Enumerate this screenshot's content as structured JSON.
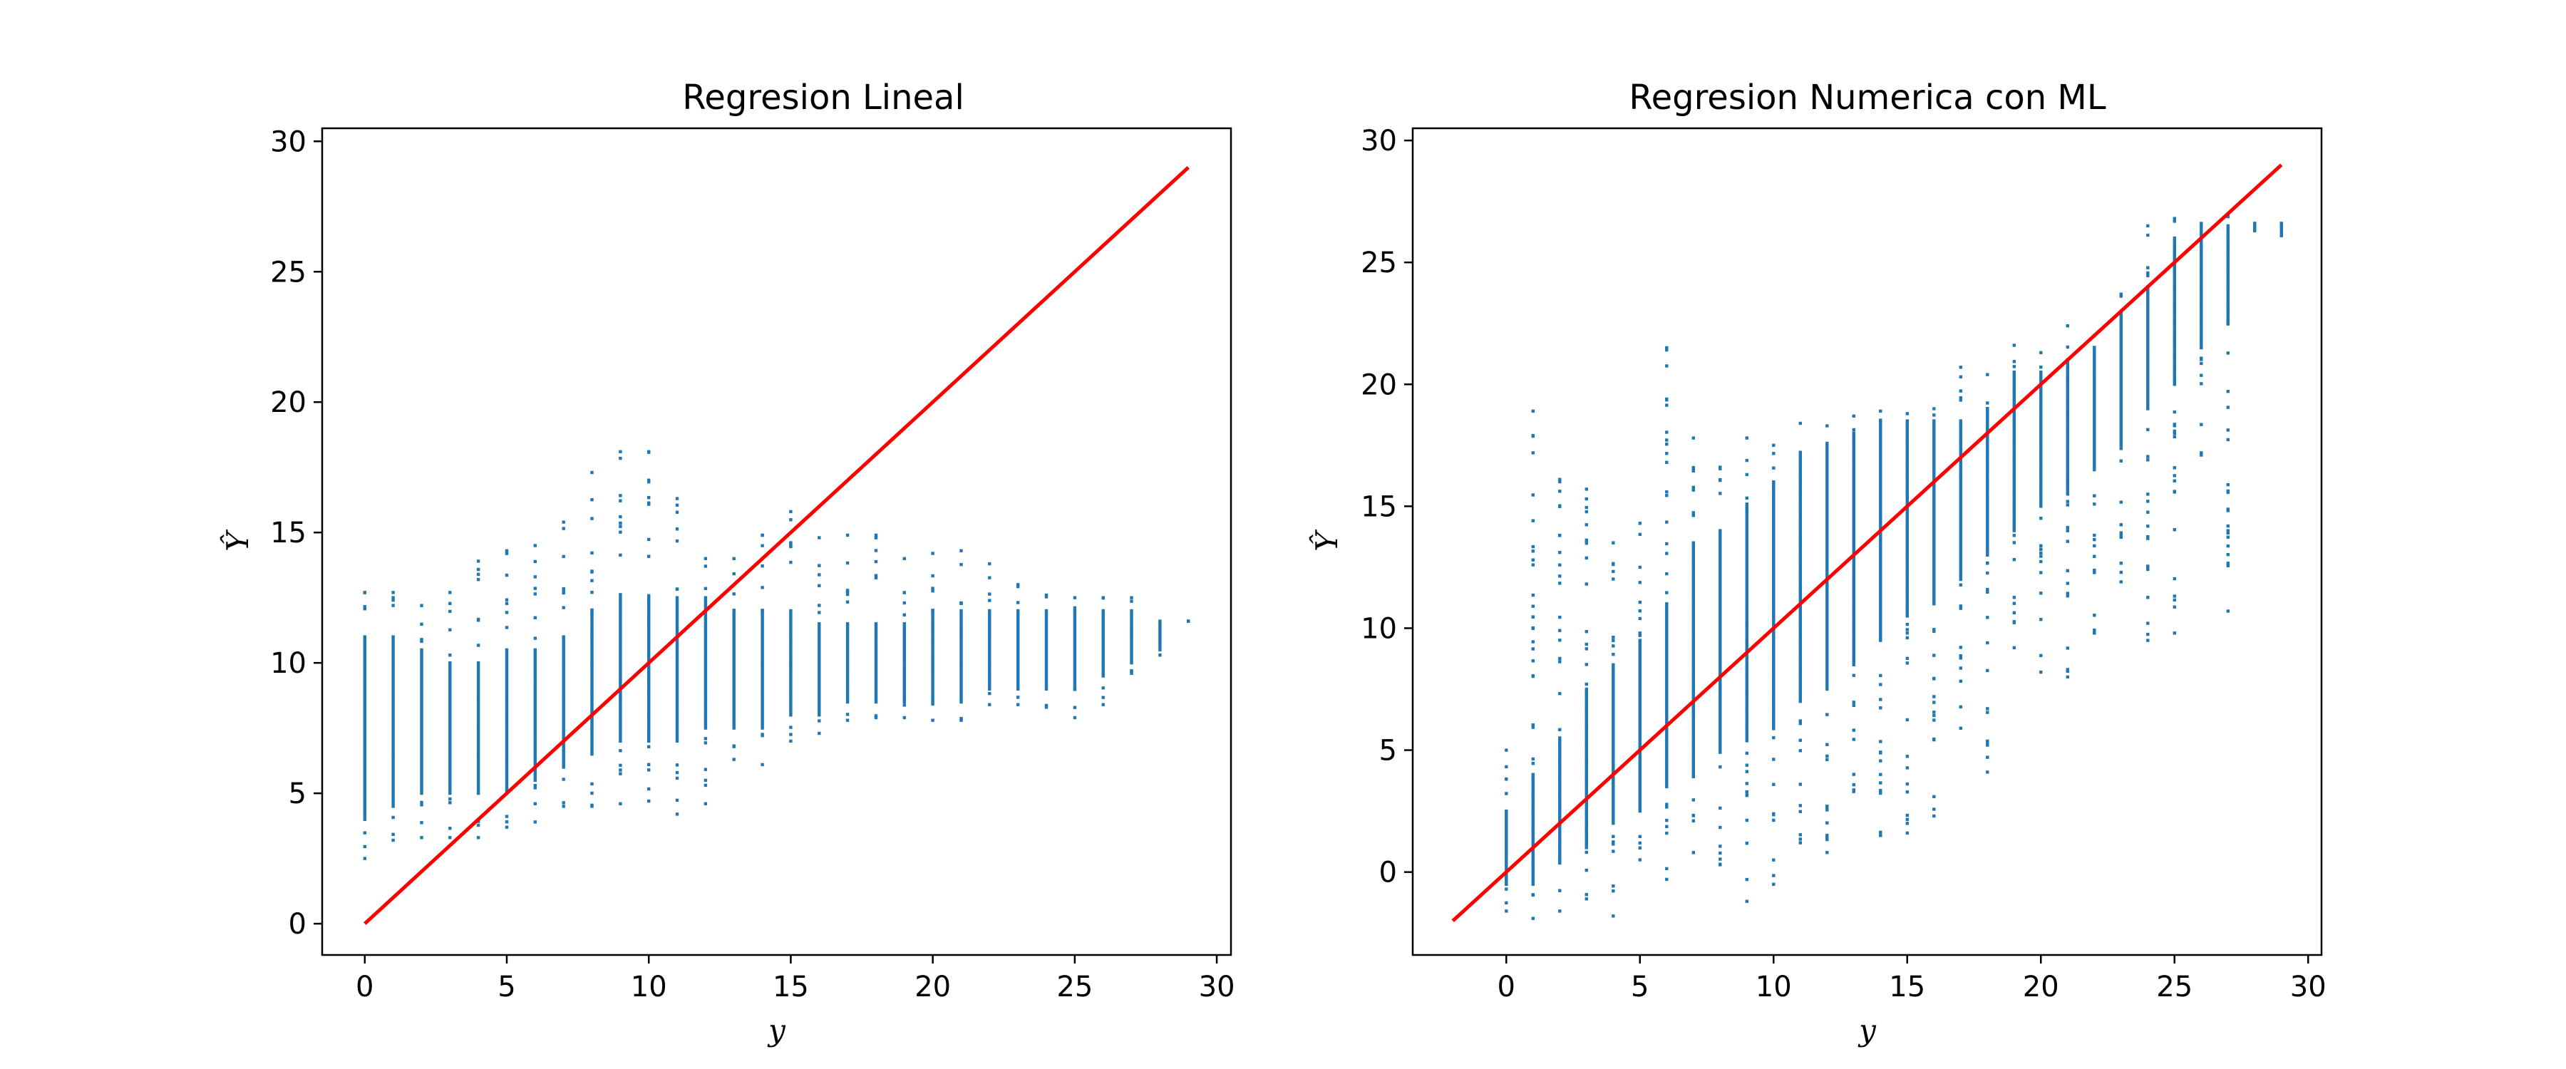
{
  "colors": {
    "points": "#1f77b4",
    "reference_line": "#ff0000"
  },
  "chart_data": [
    {
      "type": "scatter",
      "title": "Regresion Lineal",
      "xlabel": "y",
      "ylabel": "Ŷ",
      "xlim": [
        -1.5,
        30.5
      ],
      "ylim": [
        -1.2,
        30.5
      ],
      "xticks": [
        0,
        5,
        10,
        15,
        20,
        25,
        30
      ],
      "yticks": [
        0,
        5,
        10,
        15,
        20,
        25,
        30
      ],
      "grid": false,
      "reference_line": {
        "x": [
          0,
          29
        ],
        "y": [
          0,
          29
        ]
      },
      "columns": [
        {
          "x": 0,
          "lo": 2.5,
          "hi": 12.7,
          "core": [
            4.0,
            11.0
          ]
        },
        {
          "x": 1,
          "lo": 3.2,
          "hi": 12.7,
          "core": [
            4.5,
            11.0
          ]
        },
        {
          "x": 2,
          "lo": 3.3,
          "hi": 12.2,
          "core": [
            5.0,
            10.5
          ]
        },
        {
          "x": 3,
          "lo": 3.3,
          "hi": 12.7,
          "core": [
            5.0,
            10.0
          ]
        },
        {
          "x": 4,
          "lo": 3.3,
          "hi": 13.9,
          "core": [
            5.0,
            10.0
          ]
        },
        {
          "x": 5,
          "lo": 3.7,
          "hi": 14.3,
          "core": [
            5.0,
            10.5
          ]
        },
        {
          "x": 6,
          "lo": 3.9,
          "hi": 14.5,
          "core": [
            5.5,
            10.5
          ]
        },
        {
          "x": 7,
          "lo": 4.5,
          "hi": 15.4,
          "core": [
            6.0,
            11.0
          ]
        },
        {
          "x": 8,
          "lo": 4.5,
          "hi": 17.3,
          "core": [
            6.5,
            12.0
          ]
        },
        {
          "x": 9,
          "lo": 4.6,
          "hi": 18.1,
          "core": [
            7.0,
            12.5
          ]
        },
        {
          "x": 10,
          "lo": 4.7,
          "hi": 18.1,
          "core": [
            7.0,
            12.5
          ]
        },
        {
          "x": 11,
          "lo": 4.2,
          "hi": 16.3,
          "core": [
            7.0,
            12.5
          ]
        },
        {
          "x": 12,
          "lo": 4.6,
          "hi": 14.0,
          "core": [
            7.5,
            12.5
          ]
        },
        {
          "x": 13,
          "lo": 6.3,
          "hi": 14.0,
          "core": [
            7.5,
            12.0
          ]
        },
        {
          "x": 14,
          "lo": 6.1,
          "hi": 14.9,
          "core": [
            7.5,
            12.0
          ]
        },
        {
          "x": 15,
          "lo": 7.0,
          "hi": 15.8,
          "core": [
            8.0,
            12.0
          ]
        },
        {
          "x": 16,
          "lo": 7.3,
          "hi": 14.8,
          "core": [
            8.0,
            11.5
          ]
        },
        {
          "x": 17,
          "lo": 7.8,
          "hi": 14.9,
          "core": [
            8.5,
            11.5
          ]
        },
        {
          "x": 18,
          "lo": 7.9,
          "hi": 14.9,
          "core": [
            8.5,
            11.5
          ]
        },
        {
          "x": 19,
          "lo": 7.9,
          "hi": 14.0,
          "core": [
            8.5,
            11.5
          ]
        },
        {
          "x": 20,
          "lo": 7.8,
          "hi": 14.2,
          "core": [
            8.5,
            12.0
          ]
        },
        {
          "x": 21,
          "lo": 7.8,
          "hi": 14.3,
          "core": [
            8.5,
            12.0
          ]
        },
        {
          "x": 22,
          "lo": 8.4,
          "hi": 13.8,
          "core": [
            9.0,
            12.0
          ]
        },
        {
          "x": 23,
          "lo": 8.4,
          "hi": 13.0,
          "core": [
            9.0,
            12.0
          ]
        },
        {
          "x": 24,
          "lo": 8.3,
          "hi": 12.6,
          "core": [
            9.0,
            12.0
          ]
        },
        {
          "x": 25,
          "lo": 7.9,
          "hi": 12.5,
          "core": [
            9.0,
            12.0
          ]
        },
        {
          "x": 26,
          "lo": 8.4,
          "hi": 12.5,
          "core": [
            9.5,
            12.0
          ]
        },
        {
          "x": 27,
          "lo": 9.6,
          "hi": 12.5,
          "core": [
            10.0,
            12.0
          ]
        },
        {
          "x": 28,
          "lo": 10.3,
          "hi": 11.6,
          "core": [
            10.5,
            11.5
          ]
        },
        {
          "x": 29,
          "lo": 11.6,
          "hi": 11.6,
          "core": [
            11.6,
            11.6
          ]
        }
      ]
    },
    {
      "type": "scatter",
      "title": "Regresion Numerica con ML",
      "xlabel": "y",
      "ylabel": "Ŷ",
      "xlim": [
        -3.5,
        30.5
      ],
      "ylim": [
        -3.4,
        30.5
      ],
      "xticks": [
        0,
        5,
        10,
        15,
        20,
        25,
        30
      ],
      "yticks": [
        0,
        5,
        10,
        15,
        20,
        25,
        30
      ],
      "grid": false,
      "reference_line": {
        "x": [
          -2,
          29
        ],
        "y": [
          -2,
          29
        ]
      },
      "columns": [
        {
          "x": 0,
          "lo": -1.6,
          "hi": 5.0,
          "core": [
            -0.5,
            2.5
          ]
        },
        {
          "x": 1,
          "lo": -1.9,
          "hi": 18.9,
          "core": [
            -0.5,
            4.0
          ]
        },
        {
          "x": 2,
          "lo": -1.6,
          "hi": 16.1,
          "core": [
            0.5,
            5.5
          ]
        },
        {
          "x": 3,
          "lo": -1.1,
          "hi": 15.7,
          "core": [
            1.0,
            7.5
          ]
        },
        {
          "x": 4,
          "lo": -1.8,
          "hi": 13.5,
          "core": [
            2.0,
            8.5
          ]
        },
        {
          "x": 5,
          "lo": 0.5,
          "hi": 14.3,
          "core": [
            2.5,
            9.5
          ]
        },
        {
          "x": 6,
          "lo": -0.3,
          "hi": 21.5,
          "core": [
            3.5,
            11.0
          ]
        },
        {
          "x": 7,
          "lo": 0.8,
          "hi": 17.8,
          "core": [
            4.0,
            13.5
          ]
        },
        {
          "x": 8,
          "lo": 0.3,
          "hi": 16.6,
          "core": [
            5.0,
            14.0
          ]
        },
        {
          "x": 9,
          "lo": -1.2,
          "hi": 17.8,
          "core": [
            5.5,
            15.0
          ]
        },
        {
          "x": 10,
          "lo": -0.5,
          "hi": 17.5,
          "core": [
            6.0,
            16.0
          ]
        },
        {
          "x": 11,
          "lo": 1.2,
          "hi": 18.4,
          "core": [
            7.0,
            17.0
          ]
        },
        {
          "x": 12,
          "lo": 0.8,
          "hi": 18.3,
          "core": [
            7.5,
            17.5
          ]
        },
        {
          "x": 13,
          "lo": 3.3,
          "hi": 18.7,
          "core": [
            8.5,
            18.0
          ]
        },
        {
          "x": 14,
          "lo": 1.5,
          "hi": 18.9,
          "core": [
            9.5,
            18.5
          ]
        },
        {
          "x": 15,
          "lo": 1.6,
          "hi": 18.8,
          "core": [
            10.5,
            18.5
          ]
        },
        {
          "x": 16,
          "lo": 2.3,
          "hi": 19.0,
          "core": [
            11.0,
            18.5
          ]
        },
        {
          "x": 17,
          "lo": 5.9,
          "hi": 20.7,
          "core": [
            12.0,
            18.5
          ]
        },
        {
          "x": 18,
          "lo": 4.1,
          "hi": 20.4,
          "core": [
            13.0,
            19.0
          ]
        },
        {
          "x": 19,
          "lo": 9.2,
          "hi": 21.6,
          "core": [
            14.0,
            20.5
          ]
        },
        {
          "x": 20,
          "lo": 8.2,
          "hi": 21.3,
          "core": [
            15.0,
            20.5
          ]
        },
        {
          "x": 21,
          "lo": 8.0,
          "hi": 22.4,
          "core": [
            15.5,
            21.0
          ]
        },
        {
          "x": 22,
          "lo": 9.8,
          "hi": 22.0,
          "core": [
            16.5,
            21.5
          ]
        },
        {
          "x": 23,
          "lo": 11.9,
          "hi": 23.7,
          "core": [
            17.5,
            23.0
          ]
        },
        {
          "x": 24,
          "lo": 9.5,
          "hi": 26.5,
          "core": [
            19.0,
            24.0
          ]
        },
        {
          "x": 25,
          "lo": 9.8,
          "hi": 26.8,
          "core": [
            20.0,
            26.0
          ]
        },
        {
          "x": 26,
          "lo": 17.1,
          "hi": 26.6,
          "core": [
            21.5,
            26.5
          ]
        },
        {
          "x": 27,
          "lo": 10.7,
          "hi": 26.9,
          "core": [
            22.5,
            26.5
          ]
        },
        {
          "x": 28,
          "lo": 26.3,
          "hi": 26.6,
          "core": [
            26.3,
            26.6
          ]
        },
        {
          "x": 29,
          "lo": 26.1,
          "hi": 26.6,
          "core": [
            26.1,
            26.6
          ]
        }
      ]
    }
  ]
}
